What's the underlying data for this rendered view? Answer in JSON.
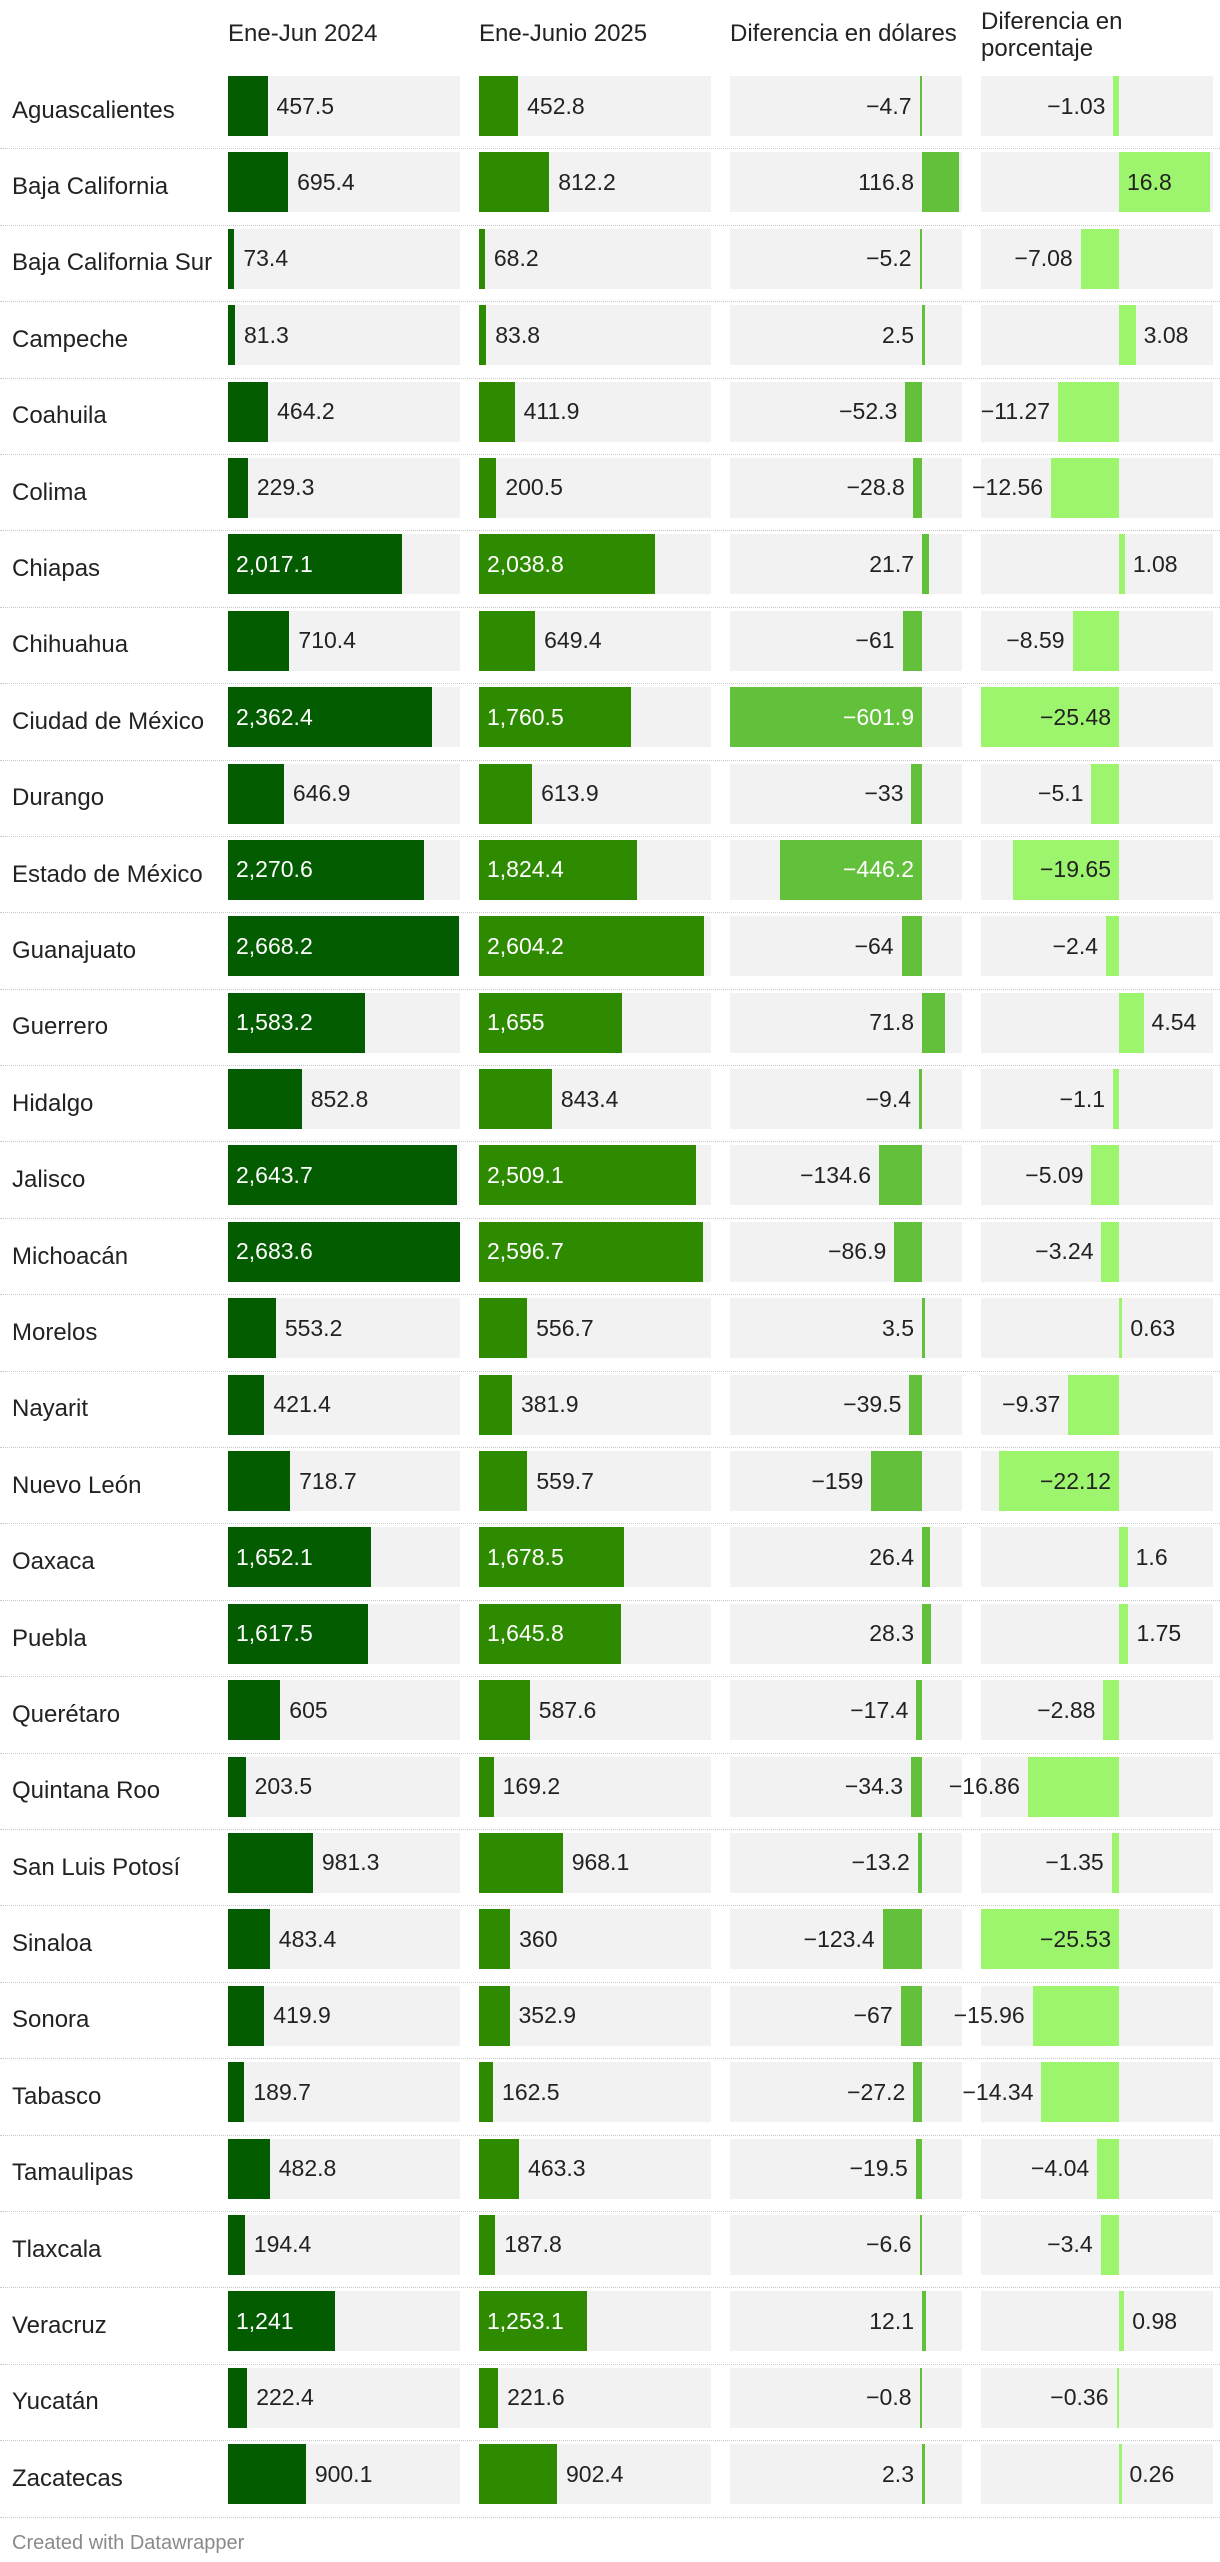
{
  "columns": {
    "col1": "Ene-Jun 2024",
    "col2": "Ene-Junio 2025",
    "col3": "Diferencia en dólares",
    "col4_line1": "Diferencia en",
    "col4_line2": "porcentaje"
  },
  "colors": {
    "col1_bar": "#035c00",
    "col2_bar": "#2e8b00",
    "diff_bar": "#63c03b",
    "pct_bar": "#9df56e",
    "track": "#f2f2f2"
  },
  "chart_data": {
    "type": "table",
    "columns": [
      "Ene-Jun 2024",
      "Ene-Junio 2025",
      "Diferencia en dólares",
      "Diferencia en porcentaje"
    ],
    "scales": {
      "abs_max": 2683.6,
      "diff_range": [
        -601.9,
        116.8
      ],
      "pct_range": [
        -25.53,
        16.8
      ]
    },
    "rows": [
      {
        "state": "Aguascalientes",
        "v2024": 457.5,
        "v2025": 452.8,
        "diff": -4.7,
        "pct": -1.03
      },
      {
        "state": "Baja California",
        "v2024": 695.4,
        "v2025": 812.2,
        "diff": 116.8,
        "pct": 16.8
      },
      {
        "state": "Baja California Sur",
        "v2024": 73.4,
        "v2025": 68.2,
        "diff": -5.2,
        "pct": -7.08
      },
      {
        "state": "Campeche",
        "v2024": 81.3,
        "v2025": 83.8,
        "diff": 2.5,
        "pct": 3.08
      },
      {
        "state": "Coahuila",
        "v2024": 464.2,
        "v2025": 411.9,
        "diff": -52.3,
        "pct": -11.27
      },
      {
        "state": "Colima",
        "v2024": 229.3,
        "v2025": 200.5,
        "diff": -28.8,
        "pct": -12.56
      },
      {
        "state": "Chiapas",
        "v2024": 2017.1,
        "v2025": 2038.8,
        "diff": 21.7,
        "pct": 1.08
      },
      {
        "state": "Chihuahua",
        "v2024": 710.4,
        "v2025": 649.4,
        "diff": -61,
        "pct": -8.59
      },
      {
        "state": "Ciudad de México",
        "v2024": 2362.4,
        "v2025": 1760.5,
        "diff": -601.9,
        "pct": -25.48
      },
      {
        "state": "Durango",
        "v2024": 646.9,
        "v2025": 613.9,
        "diff": -33,
        "pct": -5.1
      },
      {
        "state": "Estado de México",
        "v2024": 2270.6,
        "v2025": 1824.4,
        "diff": -446.2,
        "pct": -19.65
      },
      {
        "state": "Guanajuato",
        "v2024": 2668.2,
        "v2025": 2604.2,
        "diff": -64,
        "pct": -2.4
      },
      {
        "state": "Guerrero",
        "v2024": 1583.2,
        "v2025": 1655,
        "diff": 71.8,
        "pct": 4.54
      },
      {
        "state": "Hidalgo",
        "v2024": 852.8,
        "v2025": 843.4,
        "diff": -9.4,
        "pct": -1.1
      },
      {
        "state": "Jalisco",
        "v2024": 2643.7,
        "v2025": 2509.1,
        "diff": -134.6,
        "pct": -5.09
      },
      {
        "state": "Michoacán",
        "v2024": 2683.6,
        "v2025": 2596.7,
        "diff": -86.9,
        "pct": -3.24
      },
      {
        "state": "Morelos",
        "v2024": 553.2,
        "v2025": 556.7,
        "diff": 3.5,
        "pct": 0.63
      },
      {
        "state": "Nayarit",
        "v2024": 421.4,
        "v2025": 381.9,
        "diff": -39.5,
        "pct": -9.37
      },
      {
        "state": "Nuevo León",
        "v2024": 718.7,
        "v2025": 559.7,
        "diff": -159,
        "pct": -22.12
      },
      {
        "state": "Oaxaca",
        "v2024": 1652.1,
        "v2025": 1678.5,
        "diff": 26.4,
        "pct": 1.6
      },
      {
        "state": "Puebla",
        "v2024": 1617.5,
        "v2025": 1645.8,
        "diff": 28.3,
        "pct": 1.75
      },
      {
        "state": "Querétaro",
        "v2024": 605,
        "v2025": 587.6,
        "diff": -17.4,
        "pct": -2.88
      },
      {
        "state": "Quintana Roo",
        "v2024": 203.5,
        "v2025": 169.2,
        "diff": -34.3,
        "pct": -16.86
      },
      {
        "state": "San Luis Potosí",
        "v2024": 981.3,
        "v2025": 968.1,
        "diff": -13.2,
        "pct": -1.35
      },
      {
        "state": "Sinaloa",
        "v2024": 483.4,
        "v2025": 360,
        "diff": -123.4,
        "pct": -25.53
      },
      {
        "state": "Sonora",
        "v2024": 419.9,
        "v2025": 352.9,
        "diff": -67,
        "pct": -15.96
      },
      {
        "state": "Tabasco",
        "v2024": 189.7,
        "v2025": 162.5,
        "diff": -27.2,
        "pct": -14.34
      },
      {
        "state": "Tamaulipas",
        "v2024": 482.8,
        "v2025": 463.3,
        "diff": -19.5,
        "pct": -4.04
      },
      {
        "state": "Tlaxcala",
        "v2024": 194.4,
        "v2025": 187.8,
        "diff": -6.6,
        "pct": -3.4
      },
      {
        "state": "Veracruz",
        "v2024": 1241,
        "v2025": 1253.1,
        "diff": 12.1,
        "pct": 0.98
      },
      {
        "state": "Yucatán",
        "v2024": 222.4,
        "v2025": 221.6,
        "diff": -0.8,
        "pct": -0.36
      },
      {
        "state": "Zacatecas",
        "v2024": 900.1,
        "v2025": 902.4,
        "diff": 2.3,
        "pct": 0.26
      }
    ]
  },
  "footer": {
    "credit": "Created with Datawrapper"
  }
}
